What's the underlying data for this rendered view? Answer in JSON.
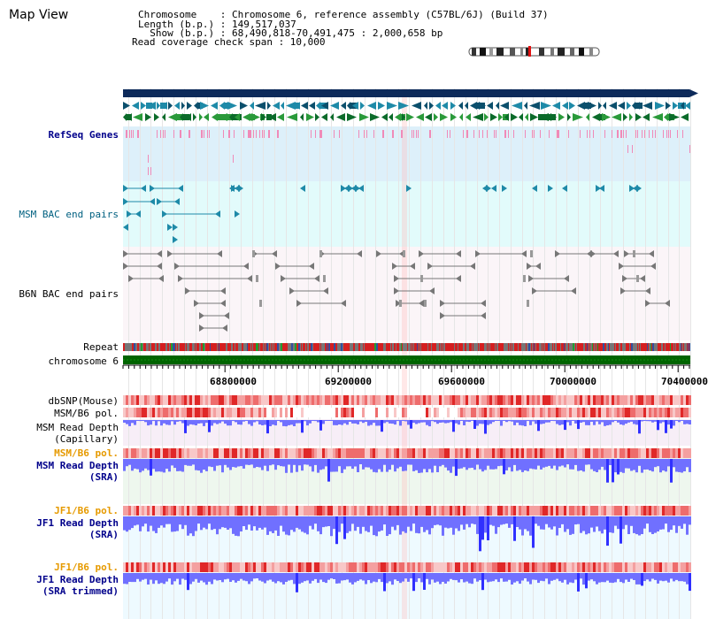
{
  "header": {
    "title": "Map View",
    "info_lines": [
      "Chromosome    : Chromosome 6, reference assembly (C57BL/6J) (Build 37)",
      "Length (b.p.) : 149,517,037",
      "  Show (b.p.) : 68,490,818-70,491,475 : 2,000,658 bp",
      "Read coverage check span : 10,000"
    ]
  },
  "tracks": {
    "refseq": "RefSeq Genes",
    "msm_bac": "MSM BAC end pairs",
    "b6n_bac": "B6N BAC end pairs",
    "repeat": "Repeat",
    "chromosome": "chromosome 6",
    "dbsnp": "dbSNP(Mouse)",
    "msm_b6_pol": "MSM/B6 pol.",
    "msm_depth_cap_1": "MSM Read Depth",
    "msm_depth_cap_2": "(Capillary)",
    "msm_b6_pol_2": "MSM/B6 pol.",
    "msm_depth_sra_1": "MSM Read Depth",
    "msm_depth_sra_2": "(SRA)",
    "jf1_b6_pol": "JF1/B6 pol.",
    "jf1_depth_sra_1": "JF1 Read Depth",
    "jf1_depth_sra_2": "(SRA)",
    "jf1_b6_pol_2": "JF1/B6 pol.",
    "jf1_depth_trim_1": "JF1 Read Depth",
    "jf1_depth_trim_2": "(SRA trimmed)"
  },
  "axis": {
    "ticks": [
      "68800000",
      "69200000",
      "69600000",
      "70000000",
      "70400000"
    ]
  },
  "colors": {
    "label_blue": "#00008b",
    "label_teal": "#006080",
    "label_orange": "#e69a00",
    "refseq_bg": "#ddf0fa",
    "msm_bac_bg": "#e2fbfb",
    "chromosome_green": "#006400",
    "depth_blue": "#6464ff",
    "ideogram_marker": "#e01010"
  }
}
